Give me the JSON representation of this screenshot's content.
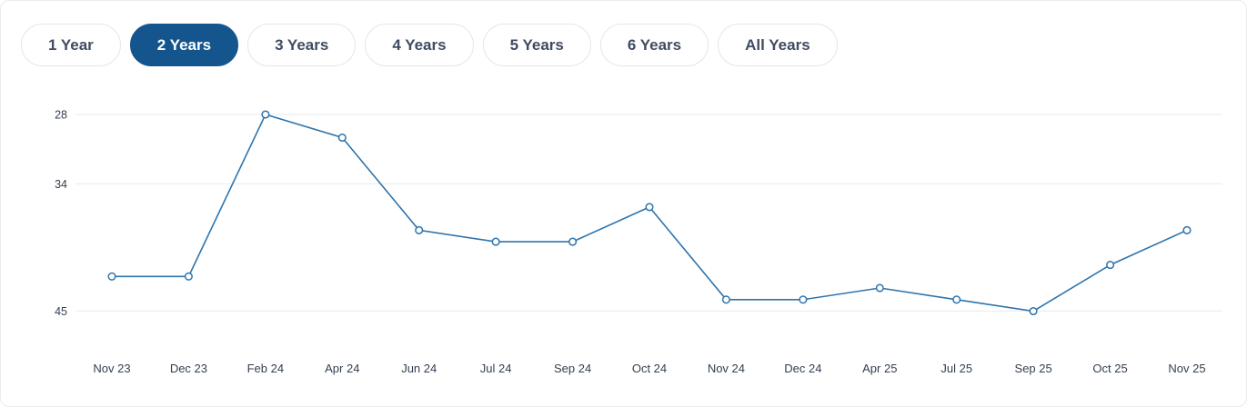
{
  "filters": {
    "items": [
      {
        "label": "1 Year",
        "active": false
      },
      {
        "label": "2 Years",
        "active": true
      },
      {
        "label": "3 Years",
        "active": false
      },
      {
        "label": "4 Years",
        "active": false
      },
      {
        "label": "5 Years",
        "active": false
      },
      {
        "label": "6 Years",
        "active": false
      },
      {
        "label": "All Years",
        "active": false
      }
    ]
  },
  "chart_data": {
    "type": "line",
    "title": "",
    "xlabel": "",
    "ylabel": "",
    "categories": [
      "Nov 23",
      "Dec 23",
      "Feb 24",
      "Apr 24",
      "Jun 24",
      "Jul 24",
      "Sep 24",
      "Oct 24",
      "Nov 24",
      "Dec 24",
      "Apr 25",
      "Jul 25",
      "Sep 25",
      "Oct 25",
      "Nov 25"
    ],
    "values": [
      42,
      42,
      28,
      30,
      38,
      39,
      39,
      36,
      44,
      44,
      43,
      44,
      45,
      41,
      38
    ],
    "y_ticks": [
      28,
      34,
      45
    ],
    "y_axis_inverted": true,
    "grid": true,
    "legend": false,
    "colors": {
      "line": "#2e74ad",
      "marker_fill": "#ffffff",
      "marker_stroke": "#2e74ad",
      "grid": "#eef0f4",
      "axis_text": "#333f50",
      "active_button_bg": "#14558d",
      "active_button_text": "#ffffff",
      "button_text": "#3f4c63",
      "button_border": "#e3e6ec",
      "card_border": "#e9ebf1"
    }
  }
}
